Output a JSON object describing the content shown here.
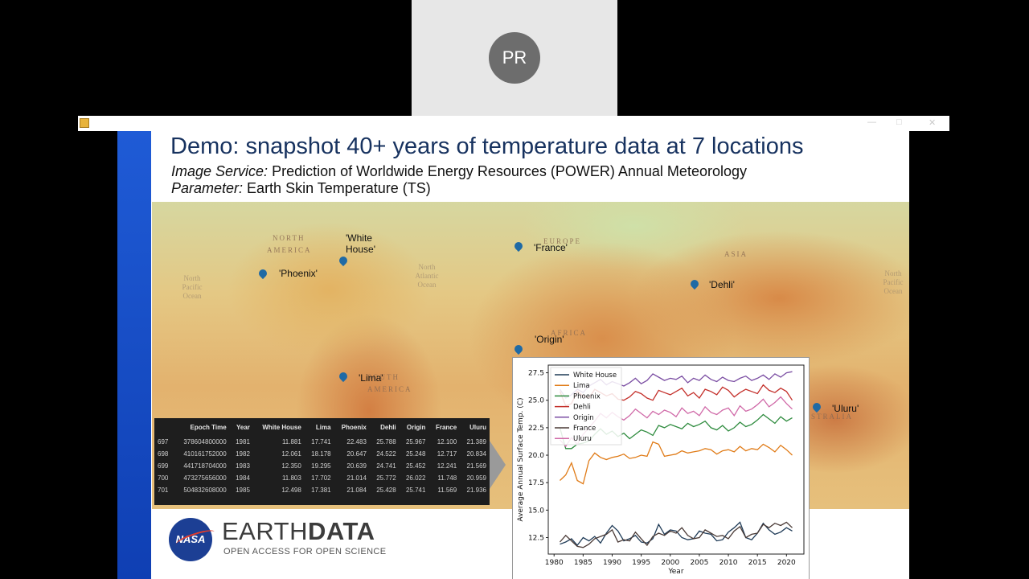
{
  "participant": {
    "initials": "PR"
  },
  "slide": {
    "title": "Demo: snapshot 40+ years of temperature data at 7 locations",
    "image_service_label": "Image Service:",
    "image_service_value": " Prediction of Worldwide Energy Resources (POWER) Annual Meteorology",
    "parameter_label": "Parameter:",
    "parameter_value": " Earth Skin Temperature (TS)"
  },
  "map": {
    "regions": [
      "NORTH",
      "AMERICA",
      "EUROPE",
      "ASIA",
      "AFRICA",
      "SOUTH",
      "AMERICA",
      "STRALIA"
    ],
    "oceans": [
      "North Pacific Ocean",
      "North Atlantic Ocean",
      "North Pacific Ocean"
    ],
    "pins": [
      "'Phoenix'",
      "'White House'",
      "'France'",
      "'Dehli'",
      "'Origin'",
      "'Lima'",
      "'Uluru'"
    ],
    "pin_color": "#1f6aa5"
  },
  "table": {
    "headers": [
      "",
      "Epoch Time",
      "Year",
      "White House",
      "Lima",
      "Phoenix",
      "Dehli",
      "Origin",
      "France",
      "Uluru"
    ],
    "rows": [
      [
        "697",
        "378604800000",
        "1981",
        "11.881",
        "17.741",
        "22.483",
        "25.788",
        "25.967",
        "12.100",
        "21.389"
      ],
      [
        "698",
        "410161752000",
        "1982",
        "12.061",
        "18.178",
        "20.647",
        "24.522",
        "25.248",
        "12.717",
        "20.834"
      ],
      [
        "699",
        "441718704000",
        "1983",
        "12.350",
        "19.295",
        "20.639",
        "24.741",
        "25.452",
        "12.241",
        "21.569"
      ],
      [
        "700",
        "473275656000",
        "1984",
        "11.803",
        "17.702",
        "21.014",
        "25.772",
        "26.022",
        "11.748",
        "20.959"
      ],
      [
        "701",
        "504832608000",
        "1985",
        "12.498",
        "17.381",
        "21.084",
        "25.428",
        "25.741",
        "11.569",
        "21.936"
      ]
    ]
  },
  "logo": {
    "nasa": "NASA",
    "earth": "EARTH",
    "data": "DATA",
    "tagline": "OPEN ACCESS FOR OPEN SCIENCE"
  },
  "chart_data": {
    "type": "line",
    "xlabel": "Year",
    "ylabel": "Average Annual Surface Temp. (C)",
    "xlim": [
      1979,
      2023
    ],
    "ylim": [
      11,
      28.2
    ],
    "xticks": [
      1980,
      1985,
      1990,
      1995,
      2000,
      2005,
      2010,
      2015,
      2020
    ],
    "yticks": [
      12.5,
      15.0,
      17.5,
      20.0,
      22.5,
      25.0,
      27.5
    ],
    "legend_position": "upper-left",
    "grid": false,
    "x": [
      1981,
      1982,
      1983,
      1984,
      1985,
      1986,
      1987,
      1988,
      1989,
      1990,
      1991,
      1992,
      1993,
      1994,
      1995,
      1996,
      1997,
      1998,
      1999,
      2000,
      2001,
      2002,
      2003,
      2004,
      2005,
      2006,
      2007,
      2008,
      2009,
      2010,
      2011,
      2012,
      2013,
      2014,
      2015,
      2016,
      2017,
      2018,
      2019,
      2020,
      2021
    ],
    "series": [
      {
        "name": "White House",
        "color": "#1f3b57",
        "values": [
          11.9,
          12.1,
          12.4,
          11.8,
          12.5,
          12.2,
          12.6,
          12.0,
          12.9,
          13.6,
          13.1,
          12.2,
          12.4,
          12.7,
          12.1,
          12.0,
          12.4,
          13.7,
          12.8,
          13.2,
          13.1,
          12.5,
          12.3,
          12.4,
          13.1,
          12.9,
          12.8,
          12.2,
          12.3,
          13.0,
          13.4,
          13.9,
          12.5,
          12.3,
          12.9,
          13.8,
          13.2,
          12.8,
          13.0,
          13.4,
          13.1
        ]
      },
      {
        "name": "Lima",
        "color": "#e07b17",
        "values": [
          17.7,
          18.2,
          19.3,
          17.7,
          17.4,
          19.5,
          20.2,
          19.8,
          19.6,
          19.8,
          19.9,
          20.1,
          19.7,
          19.8,
          20.0,
          19.9,
          21.2,
          21.0,
          19.9,
          20.0,
          20.1,
          20.4,
          20.2,
          20.3,
          20.4,
          20.6,
          20.5,
          20.1,
          20.4,
          20.5,
          20.3,
          20.8,
          20.4,
          20.6,
          20.5,
          21.0,
          20.7,
          20.3,
          20.9,
          20.5,
          20.0
        ]
      },
      {
        "name": "Phoenix",
        "color": "#2e8b3e",
        "values": [
          22.5,
          20.6,
          20.6,
          21.0,
          21.1,
          21.3,
          21.9,
          22.4,
          21.9,
          22.2,
          21.7,
          22.0,
          21.5,
          21.9,
          22.3,
          22.1,
          21.8,
          22.7,
          22.5,
          22.8,
          22.6,
          22.4,
          22.9,
          22.6,
          22.8,
          23.1,
          22.5,
          22.3,
          22.7,
          22.2,
          22.5,
          23.0,
          22.6,
          22.8,
          23.2,
          23.7,
          23.3,
          22.9,
          23.5,
          23.1,
          23.4
        ]
      },
      {
        "name": "Dehli",
        "color": "#c4302b",
        "values": [
          25.8,
          24.5,
          24.7,
          25.8,
          25.4,
          25.2,
          26.0,
          25.7,
          25.4,
          25.6,
          25.1,
          25.0,
          25.3,
          25.8,
          25.6,
          25.2,
          25.0,
          25.9,
          25.7,
          25.5,
          25.8,
          26.1,
          25.4,
          25.7,
          25.2,
          26.0,
          25.8,
          25.5,
          26.2,
          25.9,
          25.3,
          25.7,
          26.0,
          25.8,
          25.6,
          26.4,
          25.9,
          25.7,
          26.1,
          25.8,
          25.0
        ]
      },
      {
        "name": "Origin",
        "color": "#7b4ea3",
        "values": [
          26.0,
          25.2,
          25.5,
          26.0,
          25.7,
          26.3,
          26.6,
          26.9,
          26.4,
          26.7,
          26.5,
          26.3,
          26.6,
          27.0,
          26.5,
          26.8,
          27.4,
          27.1,
          26.8,
          27.0,
          26.9,
          27.2,
          26.6,
          27.0,
          26.8,
          27.3,
          26.9,
          26.7,
          27.1,
          26.8,
          26.7,
          27.0,
          27.2,
          26.8,
          27.0,
          27.3,
          26.9,
          27.4,
          27.1,
          27.5,
          27.6
        ]
      },
      {
        "name": "France",
        "color": "#4a3a36",
        "values": [
          12.1,
          12.7,
          12.2,
          11.7,
          11.6,
          11.9,
          12.4,
          12.6,
          12.8,
          13.2,
          12.1,
          12.3,
          12.2,
          13.0,
          12.4,
          11.8,
          12.6,
          12.9,
          12.7,
          13.1,
          12.9,
          13.4,
          12.7,
          12.4,
          12.5,
          13.2,
          12.9,
          12.6,
          12.7,
          12.4,
          13.1,
          13.5,
          12.5,
          12.8,
          12.9,
          13.7,
          13.4,
          13.8,
          13.6,
          13.9,
          13.4
        ]
      },
      {
        "name": "Uluru",
        "color": "#d06aa8",
        "values": [
          21.4,
          20.8,
          21.6,
          21.0,
          21.9,
          22.5,
          23.1,
          23.8,
          23.4,
          23.9,
          23.5,
          23.2,
          23.6,
          24.2,
          23.8,
          23.4,
          24.0,
          23.7,
          24.1,
          23.9,
          23.5,
          24.3,
          23.8,
          24.0,
          23.6,
          24.4,
          23.9,
          23.7,
          24.1,
          24.3,
          23.6,
          24.5,
          24.0,
          24.2,
          24.6,
          25.1,
          24.4,
          24.8,
          25.3,
          24.7,
          24.2
        ]
      }
    ]
  }
}
